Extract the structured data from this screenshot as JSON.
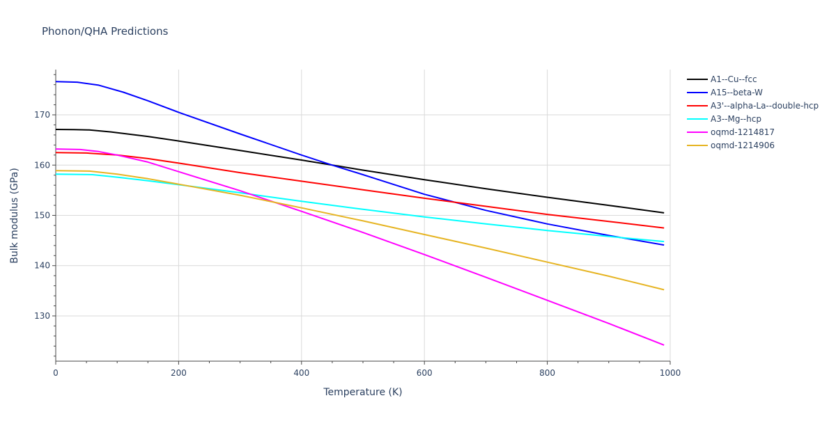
{
  "chart_data": {
    "type": "line",
    "title": "Phonon/QHA Predictions",
    "xlabel": "Temperature (K)",
    "ylabel": "Bulk modulus (GPa)",
    "xlim": [
      0,
      1000
    ],
    "ylim": [
      121,
      179
    ],
    "x_ticks": [
      0,
      200,
      400,
      600,
      800,
      1000
    ],
    "y_ticks": [
      130,
      140,
      150,
      160,
      170
    ],
    "grid": true,
    "legend_position": "top-right",
    "series": [
      {
        "name": "A1--Cu--fcc",
        "color": "#000000",
        "points": [
          [
            0,
            167.1
          ],
          [
            30,
            167.05
          ],
          [
            55,
            167.0
          ],
          [
            90,
            166.6
          ],
          [
            150,
            165.7
          ],
          [
            200,
            164.8
          ],
          [
            300,
            162.9
          ],
          [
            400,
            161.0
          ],
          [
            500,
            159.0
          ],
          [
            600,
            157.1
          ],
          [
            700,
            155.3
          ],
          [
            800,
            153.6
          ],
          [
            900,
            152.0
          ],
          [
            990,
            150.5
          ]
        ]
      },
      {
        "name": "A15--beta-W",
        "color": "#0000ff",
        "points": [
          [
            0,
            176.6
          ],
          [
            35,
            176.5
          ],
          [
            70,
            175.9
          ],
          [
            110,
            174.5
          ],
          [
            150,
            172.8
          ],
          [
            200,
            170.5
          ],
          [
            300,
            166.2
          ],
          [
            400,
            162.0
          ],
          [
            450,
            160.0
          ],
          [
            500,
            158.1
          ],
          [
            600,
            154.2
          ],
          [
            700,
            151.0
          ],
          [
            800,
            148.3
          ],
          [
            900,
            146.0
          ],
          [
            990,
            144.1
          ]
        ]
      },
      {
        "name": "A3'--alpha-La--double-hcp",
        "color": "#ff0000",
        "points": [
          [
            0,
            162.5
          ],
          [
            50,
            162.4
          ],
          [
            100,
            162.0
          ],
          [
            150,
            161.3
          ],
          [
            200,
            160.4
          ],
          [
            300,
            158.5
          ],
          [
            400,
            156.8
          ],
          [
            500,
            155.1
          ],
          [
            600,
            153.4
          ],
          [
            700,
            151.8
          ],
          [
            800,
            150.2
          ],
          [
            900,
            148.8
          ],
          [
            990,
            147.5
          ]
        ]
      },
      {
        "name": "A3--Mg--hcp",
        "color": "#00ffff",
        "points": [
          [
            0,
            158.2
          ],
          [
            60,
            158.1
          ],
          [
            100,
            157.6
          ],
          [
            150,
            156.9
          ],
          [
            200,
            156.1
          ],
          [
            300,
            154.5
          ],
          [
            400,
            152.8
          ],
          [
            500,
            151.2
          ],
          [
            600,
            149.7
          ],
          [
            700,
            148.3
          ],
          [
            800,
            147.0
          ],
          [
            900,
            145.8
          ],
          [
            990,
            144.8
          ]
        ]
      },
      {
        "name": "oqmd-1214817",
        "color": "#ff00ff",
        "points": [
          [
            0,
            163.2
          ],
          [
            40,
            163.1
          ],
          [
            70,
            162.7
          ],
          [
            100,
            162.0
          ],
          [
            150,
            160.6
          ],
          [
            200,
            158.7
          ],
          [
            300,
            154.9
          ],
          [
            400,
            150.8
          ],
          [
            500,
            146.6
          ],
          [
            600,
            142.2
          ],
          [
            700,
            137.7
          ],
          [
            800,
            133.1
          ],
          [
            900,
            128.5
          ],
          [
            990,
            124.2
          ]
        ]
      },
      {
        "name": "oqmd-1214906",
        "color": "#e6b422",
        "points": [
          [
            0,
            158.9
          ],
          [
            55,
            158.8
          ],
          [
            100,
            158.2
          ],
          [
            150,
            157.3
          ],
          [
            200,
            156.2
          ],
          [
            300,
            154.0
          ],
          [
            400,
            151.5
          ],
          [
            500,
            148.9
          ],
          [
            600,
            146.2
          ],
          [
            700,
            143.5
          ],
          [
            800,
            140.7
          ],
          [
            900,
            137.9
          ],
          [
            990,
            135.2
          ]
        ]
      }
    ]
  }
}
